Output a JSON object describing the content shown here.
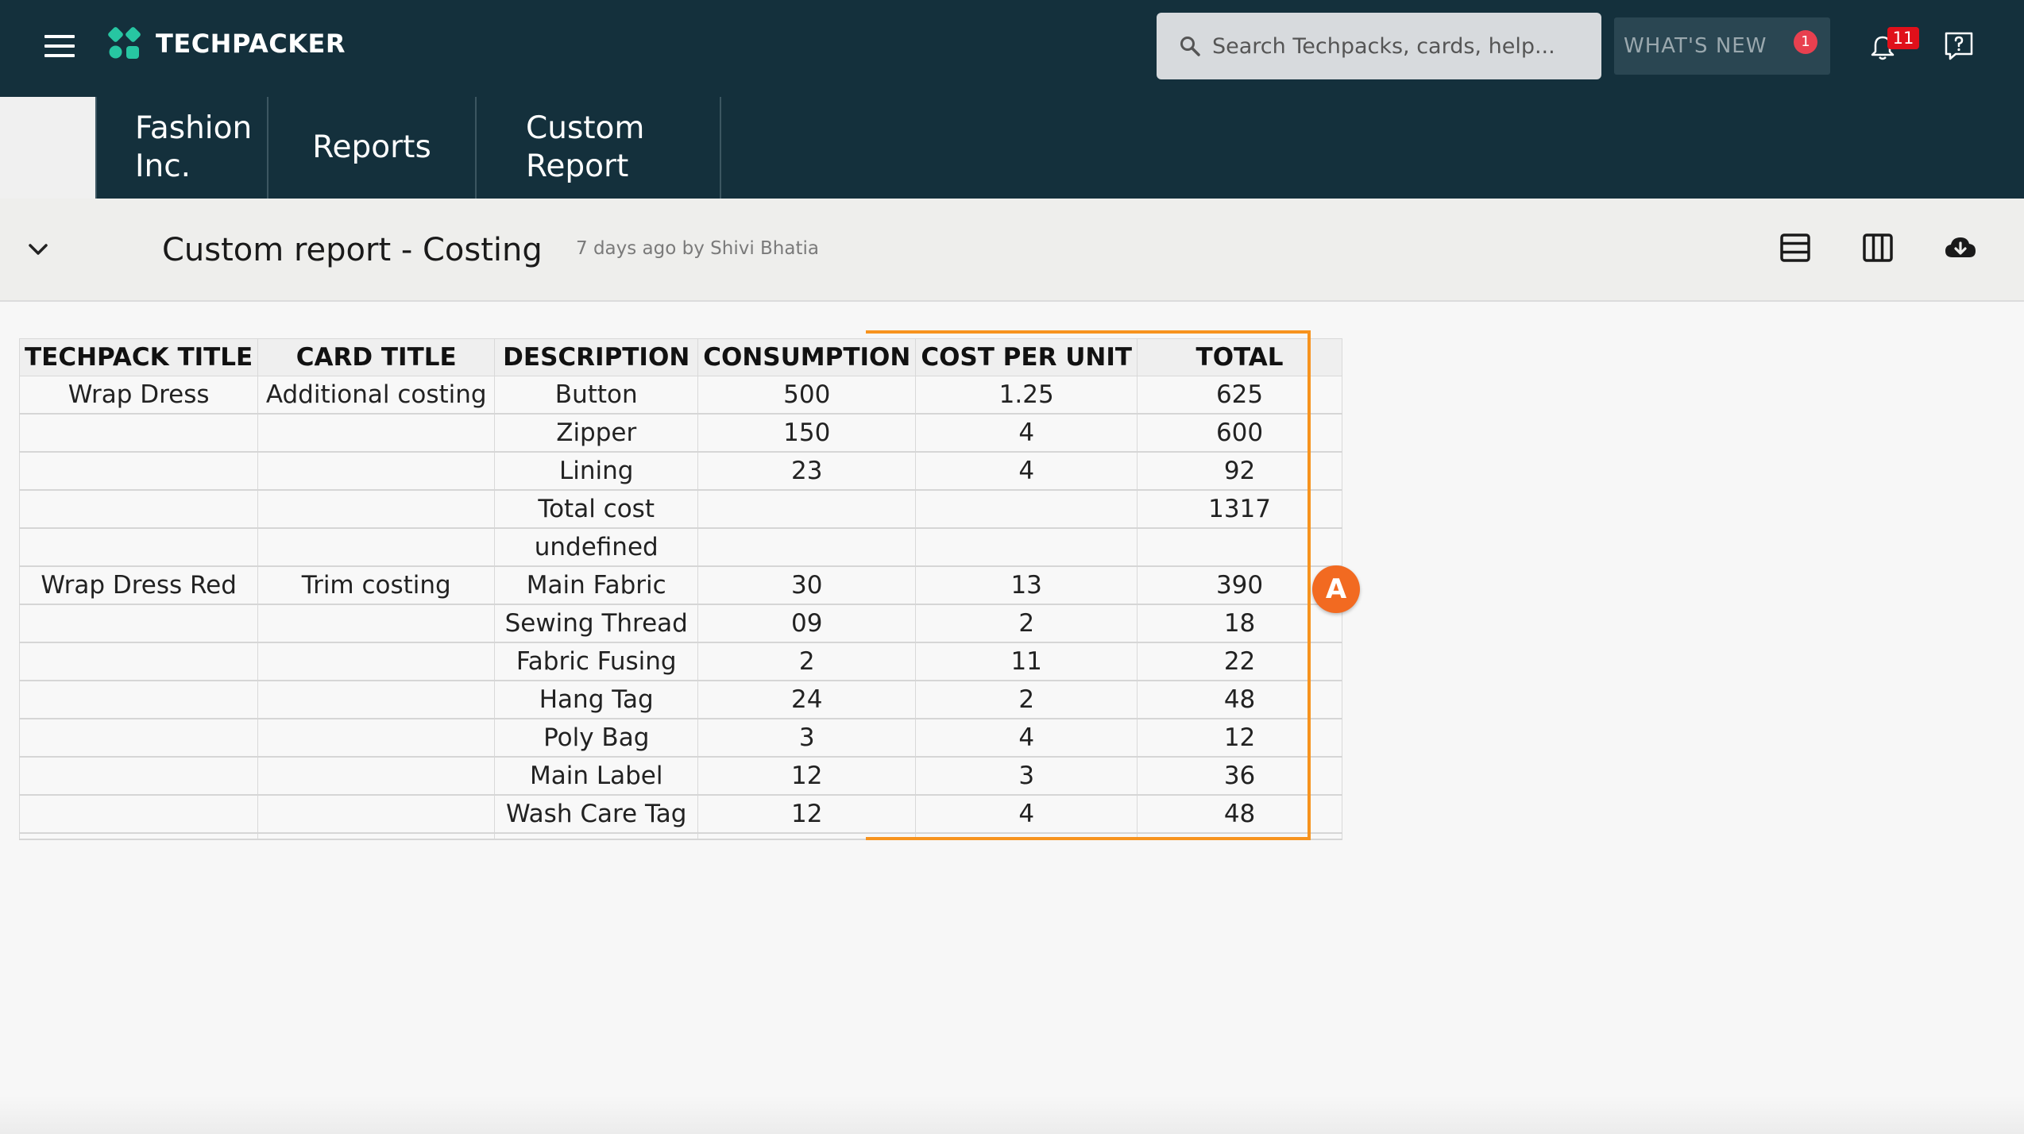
{
  "app": {
    "brand": "TECHPACKER",
    "search_placeholder": "Search Techpacks, cards, help...",
    "whats_new": "WHAT'S NEW",
    "whats_new_count": "1",
    "notification_count": "11"
  },
  "breadcrumb": [
    {
      "label": "Fashion Inc."
    },
    {
      "label": "Reports"
    },
    {
      "label": "Custom Report"
    }
  ],
  "report": {
    "title": "Custom report - Costing",
    "meta": "7 days ago by Shivi Bhatia"
  },
  "table": {
    "columns": [
      "TECHPACK TITLE",
      "CARD TITLE",
      "DESCRIPTION",
      "CONSUMPTION",
      "COST PER UNIT",
      "TOTAL"
    ],
    "rows": [
      [
        "Wrap Dress",
        "Additional costing",
        "Button",
        "500",
        "1.25",
        "625"
      ],
      [
        "",
        "",
        "Zipper",
        "150",
        "4",
        "600"
      ],
      [
        "",
        "",
        "Lining",
        "23",
        "4",
        "92"
      ],
      [
        "",
        "",
        "Total cost",
        "",
        "",
        "1317"
      ],
      [
        "",
        "",
        "undefined",
        "",
        "",
        ""
      ],
      [
        "Wrap Dress Red",
        "Trim costing",
        "Main Fabric",
        "30",
        "13",
        "390"
      ],
      [
        "",
        "",
        "Sewing Thread",
        "09",
        "2",
        "18"
      ],
      [
        "",
        "",
        "Fabric Fusing",
        "2",
        "11",
        "22"
      ],
      [
        "",
        "",
        "Hang Tag",
        "24",
        "2",
        "48"
      ],
      [
        "",
        "",
        "Poly Bag",
        "3",
        "4",
        "12"
      ],
      [
        "",
        "",
        "Main Label",
        "12",
        "3",
        "36"
      ],
      [
        "",
        "",
        "Wash Care Tag",
        "12",
        "4",
        "48"
      ]
    ]
  },
  "annotation": {
    "marker": "A",
    "color": "#f7931e"
  },
  "colors": {
    "header_bg": "#14303c",
    "accent": "#27c6a2",
    "badge": "#e0101a"
  }
}
